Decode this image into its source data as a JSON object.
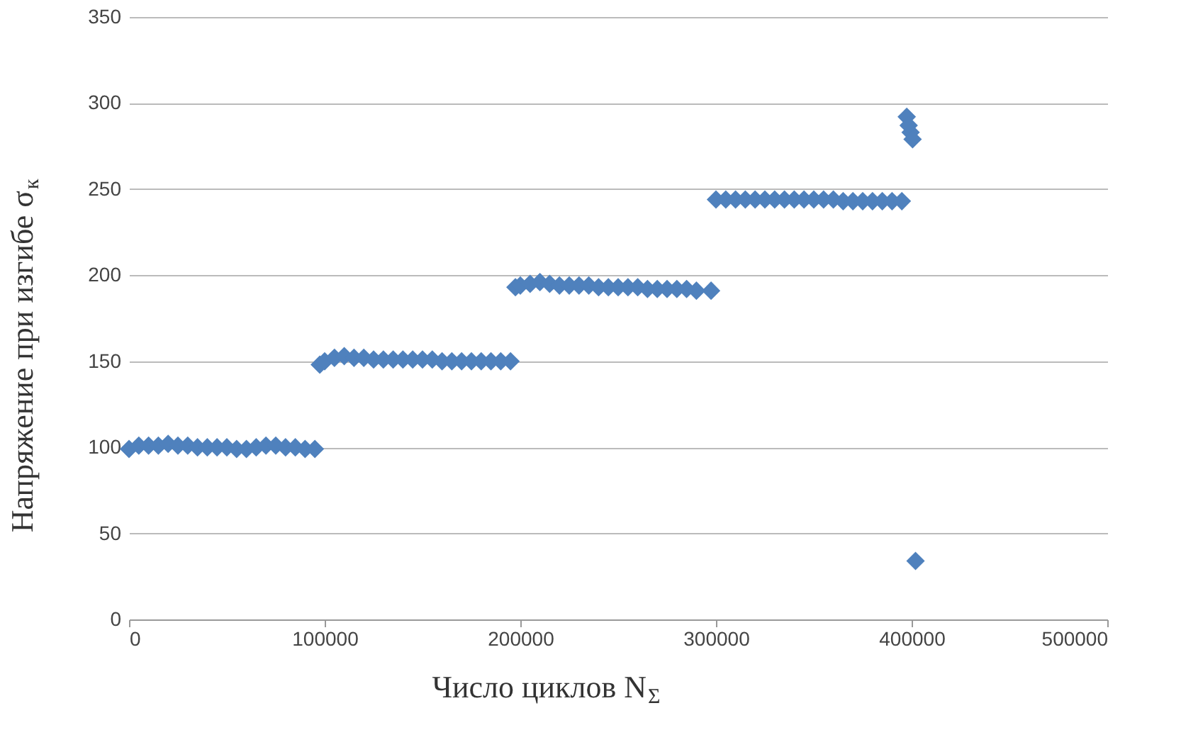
{
  "chart_data": {
    "type": "scatter",
    "xlabel": "Число циклов N$_{Σ}$",
    "ylabel": "Напряжение при изгибе σ$_{к}$",
    "x": [
      0,
      5000,
      10000,
      15000,
      20000,
      25000,
      30000,
      35000,
      40000,
      45000,
      50000,
      55000,
      60000,
      65000,
      70000,
      75000,
      80000,
      85000,
      90000,
      95000,
      97500,
      100000,
      105000,
      110000,
      115000,
      120000,
      125000,
      130000,
      135000,
      140000,
      145000,
      150000,
      155000,
      160000,
      165000,
      170000,
      175000,
      180000,
      185000,
      190000,
      195000,
      197500,
      200000,
      205000,
      210000,
      215000,
      220000,
      225000,
      230000,
      235000,
      240000,
      245000,
      250000,
      255000,
      260000,
      265000,
      270000,
      275000,
      280000,
      285000,
      290000,
      297500,
      300000,
      305000,
      310000,
      315000,
      320000,
      325000,
      330000,
      335000,
      340000,
      345000,
      350000,
      355000,
      360000,
      365000,
      370000,
      375000,
      380000,
      385000,
      390000,
      395000,
      397500,
      398500,
      399500,
      400500,
      402000
    ],
    "series": [
      {
        "color": "#4f81bd",
        "values": [
          99,
          101,
          101,
          101,
          102,
          101,
          101,
          100,
          100,
          100,
          100,
          99,
          99,
          100,
          101,
          101,
          100,
          100,
          99,
          99,
          148,
          150,
          152,
          153,
          152,
          152,
          151,
          151,
          151,
          151,
          151,
          151,
          151,
          150,
          150,
          150,
          150,
          150,
          150,
          150,
          150,
          193,
          194,
          195,
          196,
          195,
          194,
          194,
          194,
          194,
          193,
          193,
          193,
          193,
          193,
          192,
          192,
          192,
          192,
          192,
          191,
          191,
          244,
          244,
          244,
          244,
          244,
          244,
          244,
          244,
          244,
          244,
          244,
          244,
          244,
          243,
          243,
          243,
          243,
          243,
          243,
          243,
          292,
          287,
          283,
          279,
          34
        ]
      }
    ],
    "xlim": [
      0,
      500000
    ],
    "xticks": [
      0,
      100000,
      200000,
      300000,
      400000,
      500000
    ],
    "ylim": [
      0,
      350
    ],
    "yticks": [
      0,
      50,
      100,
      150,
      200,
      250,
      300,
      350
    ],
    "grid": "y",
    "marker": "diamond"
  }
}
